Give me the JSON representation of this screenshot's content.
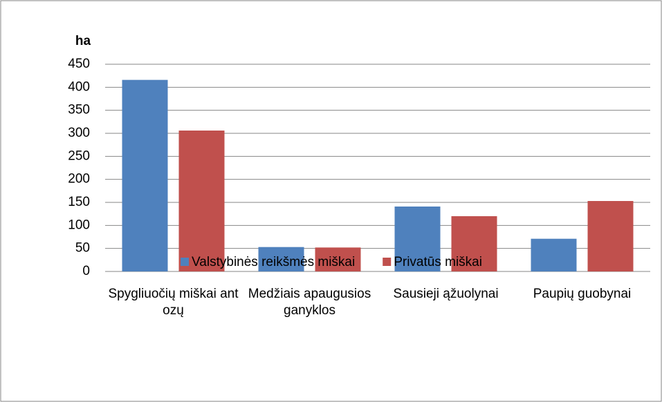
{
  "chart_data": {
    "type": "bar",
    "y_label": "ha",
    "categories": [
      "Spygliuočių miškai ant ozų",
      "Medžiais apaugusios ganyklos",
      "Sausieji ąžuolynai",
      "Paupių guobynai"
    ],
    "series": [
      {
        "name": "Valstybinės reikšmės miškai",
        "color": "#4f81bd",
        "values": [
          416,
          53,
          141,
          71
        ]
      },
      {
        "name": "Privatūs miškai",
        "color": "#c0504d",
        "values": [
          306,
          52,
          120,
          153
        ]
      }
    ],
    "ylim": [
      0,
      450
    ],
    "yticks": [
      0,
      50,
      100,
      150,
      200,
      250,
      300,
      350,
      400,
      450
    ],
    "grid": true,
    "legend": "bottom"
  }
}
